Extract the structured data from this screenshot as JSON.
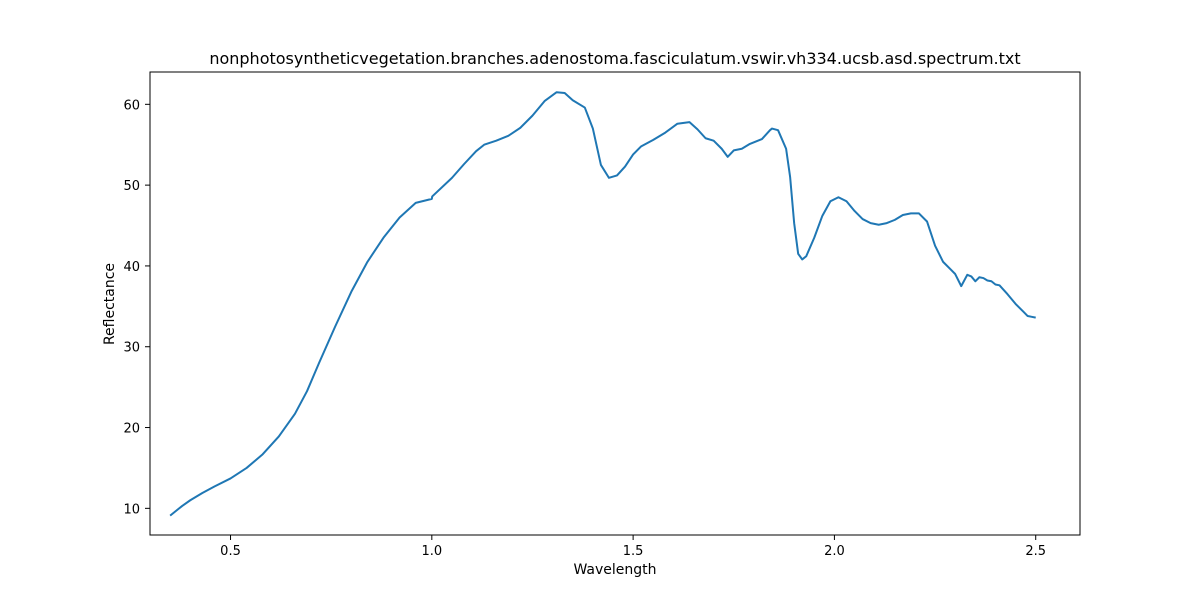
{
  "chart_data": {
    "type": "line",
    "title": "nonphotosyntheticvegetation.branches.adenostoma.fasciculatum.vswir.vh334.ucsb.asd.spectrum.txt",
    "xlabel": "Wavelength",
    "ylabel": "Reflectance",
    "xlim": [
      0.3,
      2.61
    ],
    "ylim": [
      6.7,
      64.0
    ],
    "xticks": [
      0.5,
      1.0,
      1.5,
      2.0,
      2.5
    ],
    "xtick_labels": [
      "0.5",
      "1.0",
      "1.5",
      "2.0",
      "2.5"
    ],
    "yticks": [
      10,
      20,
      30,
      40,
      50,
      60
    ],
    "ytick_labels": [
      "10",
      "20",
      "30",
      "40",
      "50",
      "60"
    ],
    "grid": false,
    "legend": "none",
    "series": [
      {
        "color": "#1f77b4",
        "x": [
          0.35,
          0.36,
          0.37,
          0.38,
          0.4,
          0.43,
          0.46,
          0.5,
          0.54,
          0.58,
          0.62,
          0.66,
          0.69,
          0.72,
          0.76,
          0.8,
          0.84,
          0.88,
          0.92,
          0.96,
          1.0,
          1.001,
          1.05,
          1.08,
          1.11,
          1.13,
          1.16,
          1.19,
          1.22,
          1.25,
          1.28,
          1.31,
          1.33,
          1.35,
          1.38,
          1.4,
          1.42,
          1.44,
          1.46,
          1.48,
          1.5,
          1.52,
          1.55,
          1.58,
          1.61,
          1.64,
          1.66,
          1.68,
          1.7,
          1.72,
          1.735,
          1.75,
          1.77,
          1.79,
          1.82,
          1.84,
          1.845,
          1.86,
          1.88,
          1.89,
          1.9,
          1.91,
          1.92,
          1.93,
          1.95,
          1.97,
          1.99,
          2.01,
          2.03,
          2.05,
          2.07,
          2.09,
          2.11,
          2.13,
          2.15,
          2.17,
          2.19,
          2.21,
          2.23,
          2.25,
          2.27,
          2.29,
          2.3,
          2.315,
          2.33,
          2.34,
          2.35,
          2.36,
          2.37,
          2.38,
          2.39,
          2.4,
          2.41,
          2.43,
          2.45,
          2.47,
          2.48,
          2.49,
          2.5
        ],
        "y": [
          9.1,
          9.5,
          9.9,
          10.3,
          11.0,
          11.9,
          12.7,
          13.7,
          15.0,
          16.7,
          18.9,
          21.7,
          24.5,
          28.0,
          32.5,
          36.8,
          40.5,
          43.5,
          46.0,
          47.8,
          48.3,
          48.6,
          50.9,
          52.6,
          54.2,
          55.0,
          55.5,
          56.1,
          57.1,
          58.6,
          60.4,
          61.5,
          61.4,
          60.5,
          59.6,
          57.0,
          52.5,
          50.9,
          51.2,
          52.3,
          53.8,
          54.8,
          55.6,
          56.5,
          57.6,
          57.8,
          56.9,
          55.8,
          55.5,
          54.5,
          53.5,
          54.3,
          54.5,
          55.1,
          55.7,
          56.8,
          57.0,
          56.8,
          54.5,
          51.0,
          45.3,
          41.5,
          40.8,
          41.2,
          43.5,
          46.2,
          48.0,
          48.5,
          48.0,
          46.8,
          45.8,
          45.3,
          45.1,
          45.3,
          45.7,
          46.3,
          46.5,
          46.5,
          45.5,
          42.5,
          40.5,
          39.5,
          39.0,
          37.5,
          38.9,
          38.7,
          38.1,
          38.6,
          38.5,
          38.2,
          38.1,
          37.7,
          37.6,
          36.5,
          35.3,
          34.3,
          33.8,
          33.7,
          33.6
        ]
      }
    ]
  }
}
